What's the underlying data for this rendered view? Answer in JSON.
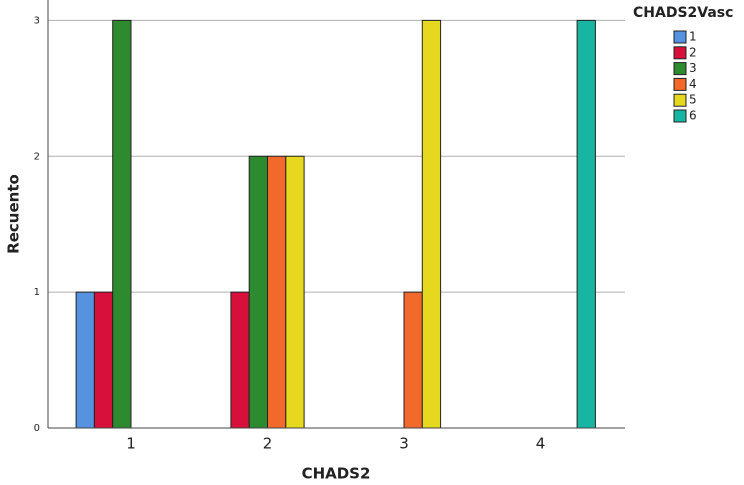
{
  "chart_data": {
    "type": "bar",
    "x_label": "CHADS2",
    "y_label": "Recuento",
    "legend_title": "CHADS2Vasc",
    "categories": [
      "1",
      "2",
      "3",
      "4"
    ],
    "series": [
      {
        "name": "1",
        "color": "#5592e0",
        "values": [
          1,
          0,
          0,
          0
        ]
      },
      {
        "name": "2",
        "color": "#d6103b",
        "values": [
          1,
          1,
          0,
          0
        ]
      },
      {
        "name": "3",
        "color": "#2e8a2e",
        "values": [
          3,
          2,
          0,
          0
        ]
      },
      {
        "name": "4",
        "color": "#f26a2b",
        "values": [
          0,
          2,
          1,
          0
        ]
      },
      {
        "name": "5",
        "color": "#e5d81e",
        "values": [
          0,
          2,
          3,
          0
        ]
      },
      {
        "name": "6",
        "color": "#18b6a2",
        "values": [
          0,
          0,
          0,
          3
        ]
      }
    ],
    "ylim": [
      0,
      3.15
    ],
    "yticks": [
      0,
      1,
      2,
      3
    ],
    "grid": true,
    "legend": "right"
  }
}
